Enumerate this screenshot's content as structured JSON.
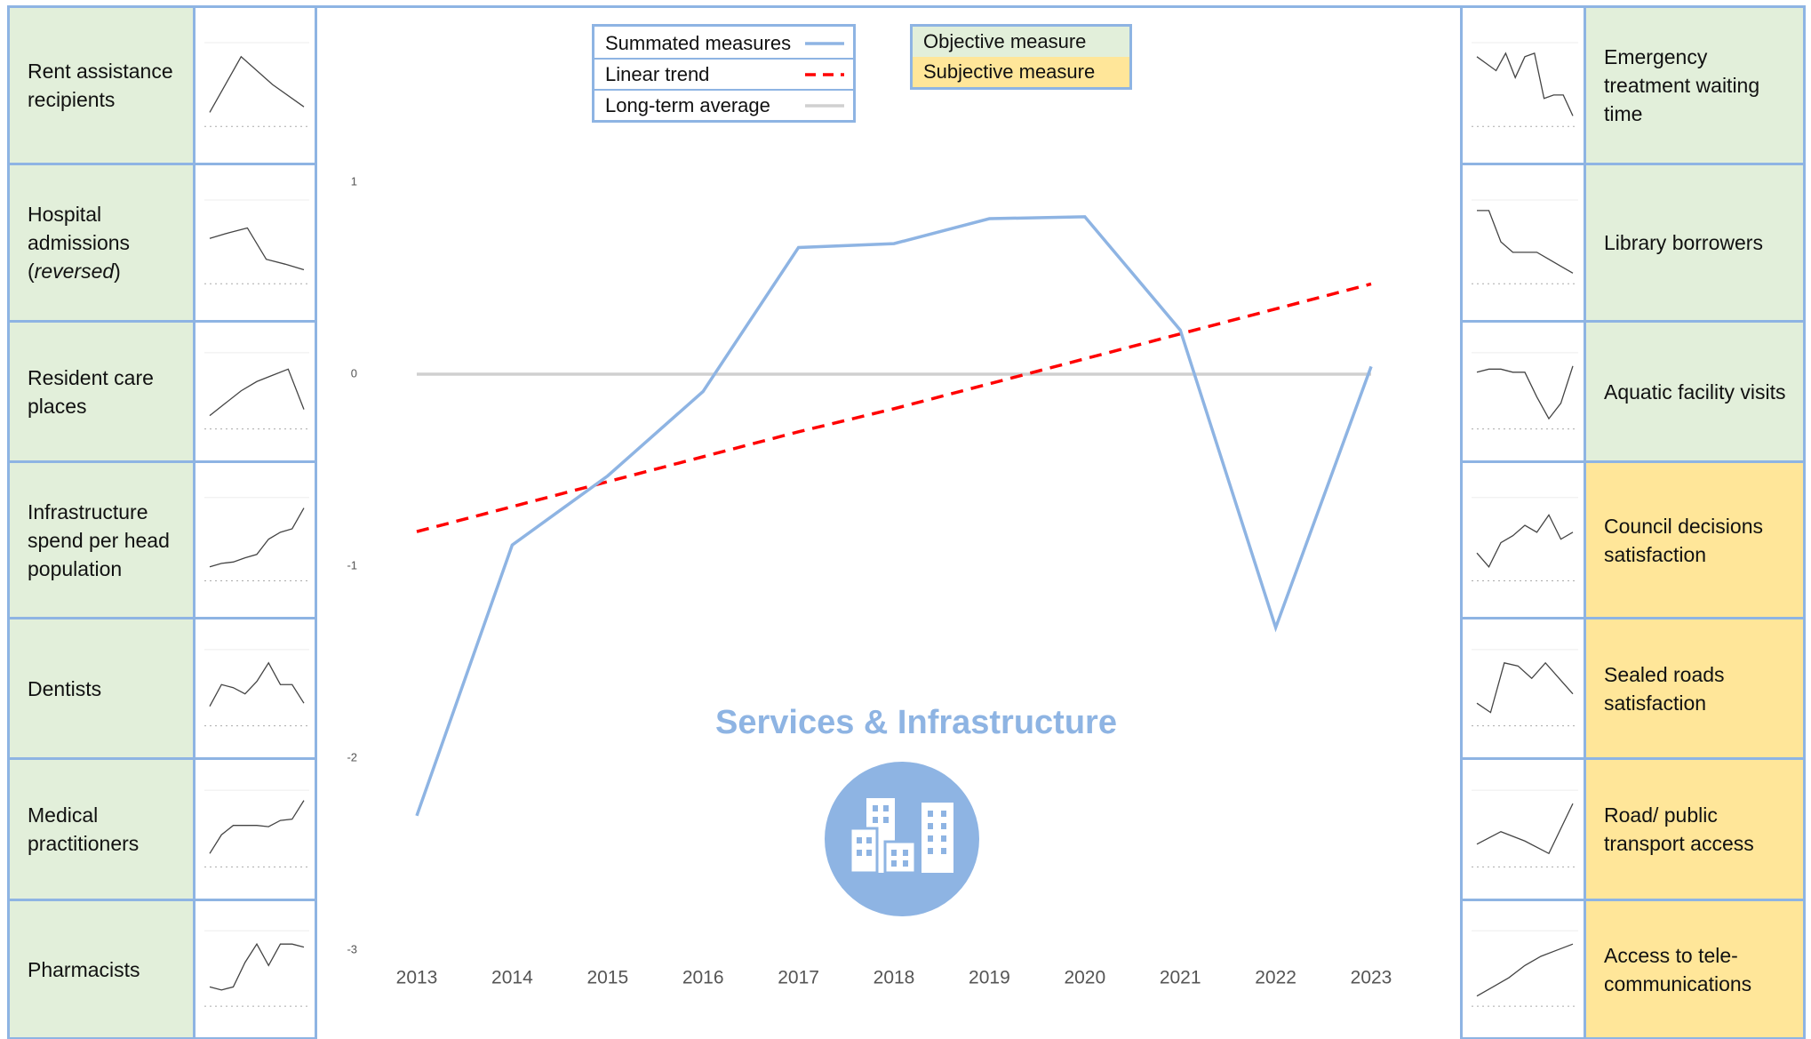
{
  "chart_data": {
    "type": "line",
    "title": "Services & Infrastructure",
    "categories": [
      "2013",
      "2014",
      "2015",
      "2016",
      "2017",
      "2018",
      "2019",
      "2020",
      "2021",
      "2022",
      "2023"
    ],
    "series": [
      {
        "name": "Summated measures",
        "color": "#8eb4e3",
        "dashed": false,
        "values": [
          -2.3,
          -0.89,
          -0.53,
          -0.09,
          0.66,
          0.68,
          0.81,
          0.82,
          0.23,
          -1.32,
          0.04
        ]
      },
      {
        "name": "Linear trend",
        "color": "#ff0000",
        "dashed": true,
        "values": [
          -0.82,
          -0.69,
          -0.56,
          -0.43,
          -0.3,
          -0.18,
          -0.05,
          0.08,
          0.21,
          0.34,
          0.47
        ]
      },
      {
        "name": "Long-term average",
        "color": "#d0d0d0",
        "dashed": false,
        "values": [
          0,
          0,
          0,
          0,
          0,
          0,
          0,
          0,
          0,
          0,
          0
        ]
      }
    ],
    "ylim": [
      -3,
      1
    ],
    "yticks": [
      -3,
      -2,
      -1,
      0,
      1
    ],
    "measure_legend": [
      {
        "label": "Objective measure",
        "color": "#e2efda"
      },
      {
        "label": "Subjective measure",
        "color": "#ffe699"
      }
    ],
    "spark_ylim": [
      0,
      10
    ],
    "left_indicators": [
      {
        "label": "Rent assistance recipients",
        "color": "#e2efda",
        "sparkline": [
          1,
          9,
          5,
          1.8
        ]
      },
      {
        "label": [
          {
            "text": "Hospital admissions ("
          },
          {
            "text": "reversed",
            "italic": true
          },
          {
            "text": ")"
          }
        ],
        "color": "#e2efda",
        "sparkline": [
          5.5,
          6.3,
          7,
          2.5,
          1.8,
          1
        ]
      },
      {
        "label": "Resident care places",
        "color": "#e2efda",
        "sparkline": [
          1,
          3,
          5,
          6.5,
          7.5,
          8.5,
          2
        ]
      },
      {
        "label": "Infrastructure spend per head population",
        "color": "#e2efda",
        "sparkline": [
          1,
          1.5,
          1.7,
          2.3,
          2.8,
          5,
          6,
          6.5,
          9.5
        ]
      },
      {
        "label": "Dentists",
        "color": "#e2efda",
        "sparkline": [
          2,
          5.5,
          5,
          4,
          6,
          9,
          5.5,
          5.5,
          2.5
        ]
      },
      {
        "label": "Medical practitioners",
        "color": "#e2efda",
        "sparkline": [
          1,
          4,
          5.5,
          5.5,
          5.5,
          5.3,
          6.3,
          6.5,
          9.5
        ]
      },
      {
        "label": "Pharmacists",
        "color": "#e2efda",
        "sparkline": [
          2,
          1.5,
          2,
          6,
          9,
          5.5,
          9,
          9,
          8.5
        ]
      }
    ],
    "right_indicators": [
      {
        "label": "Emergency treatment waiting time",
        "color": "#e2efda",
        "sparkline": [
          9,
          8,
          7,
          9.5,
          6,
          9,
          9.5,
          3,
          3.5,
          3.5,
          0.5
        ]
      },
      {
        "label": "Library borrowers",
        "color": "#e2efda",
        "sparkline": [
          9.5,
          9.5,
          5,
          3.5,
          3.5,
          3.5,
          2.5,
          1.5,
          0.5
        ]
      },
      {
        "label": "Aquatic facility visits",
        "color": "#e2efda",
        "sparkline": [
          8,
          8.5,
          8.5,
          8,
          8,
          4,
          0.5,
          3,
          9
        ]
      },
      {
        "label": "Council decisions satisfaction",
        "color": "#ffe699",
        "sparkline": [
          3,
          1,
          4.5,
          5.5,
          7,
          6,
          8.5,
          5,
          6
        ]
      },
      {
        "label": "Sealed roads satisfaction",
        "color": "#ffe699",
        "sparkline": [
          2.5,
          1,
          9,
          8.5,
          6.5,
          9,
          6.5,
          4
        ]
      },
      {
        "label": "Road/ public transport access",
        "color": "#ffe699",
        "sparkline": [
          2.5,
          4.5,
          3,
          1,
          9
        ]
      },
      {
        "label": "Access to tele-communications",
        "color": "#ffe699",
        "sparkline": [
          0.5,
          2,
          3.5,
          5.5,
          7,
          8,
          9
        ]
      }
    ]
  }
}
